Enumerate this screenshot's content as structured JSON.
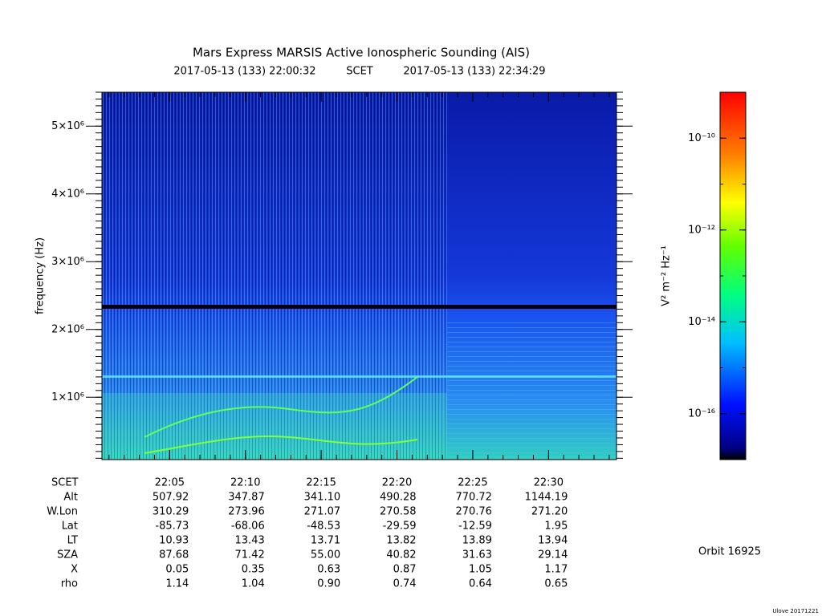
{
  "chart_data": {
    "type": "spectrogram",
    "title": "Mars Express MARSIS Active Ionospheric Sounding (AIS)",
    "subtitle_start": "2017-05-13 (133) 22:00:32",
    "subtitle_mid": "SCET",
    "subtitle_end": "2017-05-13 (133) 22:34:29",
    "ylabel": "frequency (Hz)",
    "xlim": [
      32,
      2069
    ],
    "xticks": [
      {
        "value": 300,
        "label": "22:05"
      },
      {
        "value": 600,
        "label": "22:10"
      },
      {
        "value": 900,
        "label": "22:15"
      },
      {
        "value": 1200,
        "label": "22:20"
      },
      {
        "value": 1500,
        "label": "22:25"
      },
      {
        "value": 1800,
        "label": "22:30"
      }
    ],
    "ylim": [
      80000,
      5500000
    ],
    "yticks": [
      {
        "value": 1000000,
        "label": "1×10⁶"
      },
      {
        "value": 2000000,
        "label": "2×10⁶"
      },
      {
        "value": 3000000,
        "label": "3×10⁶"
      },
      {
        "value": 4000000,
        "label": "4×10⁶"
      },
      {
        "value": 5000000,
        "label": "5×10⁶"
      }
    ],
    "colorbar": {
      "label": "V² m⁻² Hz⁻¹",
      "log": true,
      "zlim": [
        1e-17,
        1e-09
      ],
      "ticks": [
        {
          "value": 1e-16,
          "label": "10⁻¹⁶"
        },
        {
          "value": 1e-14,
          "label": "10⁻¹⁴"
        },
        {
          "value": 1e-12,
          "label": "10⁻¹²"
        },
        {
          "value": 1e-10,
          "label": "10⁻¹⁰"
        }
      ]
    }
  },
  "table": {
    "x_label": "SCET",
    "row_labels": [
      "Alt",
      "W.Lon",
      "Lat",
      "LT",
      "SZA",
      "X",
      "rho"
    ],
    "rows": [
      [
        "507.92",
        "347.87",
        "341.10",
        "490.28",
        "770.72",
        "1144.19"
      ],
      [
        "310.29",
        "273.96",
        "271.07",
        "270.58",
        "270.76",
        "271.20"
      ],
      [
        "-85.73",
        "-68.06",
        "-48.53",
        "-29.59",
        "-12.59",
        "1.95"
      ],
      [
        "10.93",
        "13.43",
        "13.71",
        "13.82",
        "13.89",
        "13.94"
      ],
      [
        "87.68",
        "71.42",
        "55.00",
        "40.82",
        "31.63",
        "29.14"
      ],
      [
        "0.05",
        "0.35",
        "0.63",
        "0.87",
        "1.05",
        "1.17"
      ],
      [
        "1.14",
        "1.04",
        "0.90",
        "0.74",
        "0.64",
        "0.65"
      ]
    ]
  },
  "orbit": "Orbit 16925",
  "credit": "Ulove 20171221"
}
